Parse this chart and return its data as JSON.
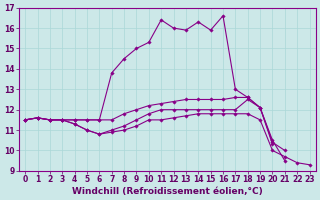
{
  "xlabel": "Windchill (Refroidissement éolien,°C)",
  "background_color": "#cce8e8",
  "line_color": "#880088",
  "xlim": [
    -0.5,
    23.5
  ],
  "ylim": [
    9,
    17
  ],
  "yticks": [
    9,
    10,
    11,
    12,
    13,
    14,
    15,
    16,
    17
  ],
  "xticks": [
    0,
    1,
    2,
    3,
    4,
    5,
    6,
    7,
    8,
    9,
    10,
    11,
    12,
    13,
    14,
    15,
    16,
    17,
    18,
    19,
    20,
    21,
    22,
    23
  ],
  "lines": [
    {
      "x": [
        0,
        1,
        2,
        3,
        4,
        5,
        6,
        7,
        8,
        9,
        10,
        11,
        12,
        13,
        14,
        15,
        16,
        17,
        18,
        19,
        20
      ],
      "y": [
        11.5,
        11.6,
        11.5,
        11.5,
        11.5,
        11.5,
        11.5,
        13.8,
        14.5,
        15.0,
        15.3,
        16.4,
        16.0,
        15.9,
        16.3,
        15.9,
        16.6,
        13.0,
        12.6,
        12.1,
        10.3
      ]
    },
    {
      "x": [
        0,
        1,
        2,
        3,
        4,
        5,
        6,
        7,
        8,
        9,
        10,
        11,
        12,
        13,
        14,
        15,
        16,
        17,
        18,
        19,
        20,
        21,
        22
      ],
      "y": [
        11.5,
        11.6,
        11.5,
        11.5,
        11.5,
        11.5,
        11.5,
        11.5,
        11.8,
        12.0,
        12.2,
        12.3,
        12.4,
        12.5,
        12.5,
        12.5,
        12.5,
        12.6,
        12.6,
        12.1,
        10.5,
        9.5,
        null
      ]
    },
    {
      "x": [
        0,
        1,
        2,
        3,
        4,
        5,
        6,
        7,
        8,
        9,
        10,
        11,
        12,
        13,
        14,
        15,
        16,
        17,
        18,
        19,
        20,
        21,
        22
      ],
      "y": [
        11.5,
        11.6,
        11.5,
        11.5,
        11.3,
        11.0,
        10.8,
        11.0,
        11.2,
        11.5,
        11.8,
        12.0,
        12.0,
        12.0,
        12.0,
        12.0,
        12.0,
        12.0,
        12.5,
        12.1,
        10.4,
        10.0,
        null
      ]
    },
    {
      "x": [
        0,
        1,
        2,
        3,
        4,
        5,
        6,
        7,
        8,
        9,
        10,
        11,
        12,
        13,
        14,
        15,
        16,
        17,
        18,
        19,
        20,
        21,
        22,
        23
      ],
      "y": [
        11.5,
        11.6,
        11.5,
        11.5,
        11.3,
        11.0,
        10.8,
        10.9,
        11.0,
        11.2,
        11.5,
        11.5,
        11.6,
        11.7,
        11.8,
        11.8,
        11.8,
        11.8,
        11.8,
        11.5,
        10.0,
        9.7,
        9.4,
        9.3
      ]
    }
  ],
  "tick_fontsize": 5.5,
  "xlabel_fontsize": 6.5,
  "grid_color": "#aad8d8",
  "axis_label_color": "#660066",
  "spine_color": "#880088"
}
